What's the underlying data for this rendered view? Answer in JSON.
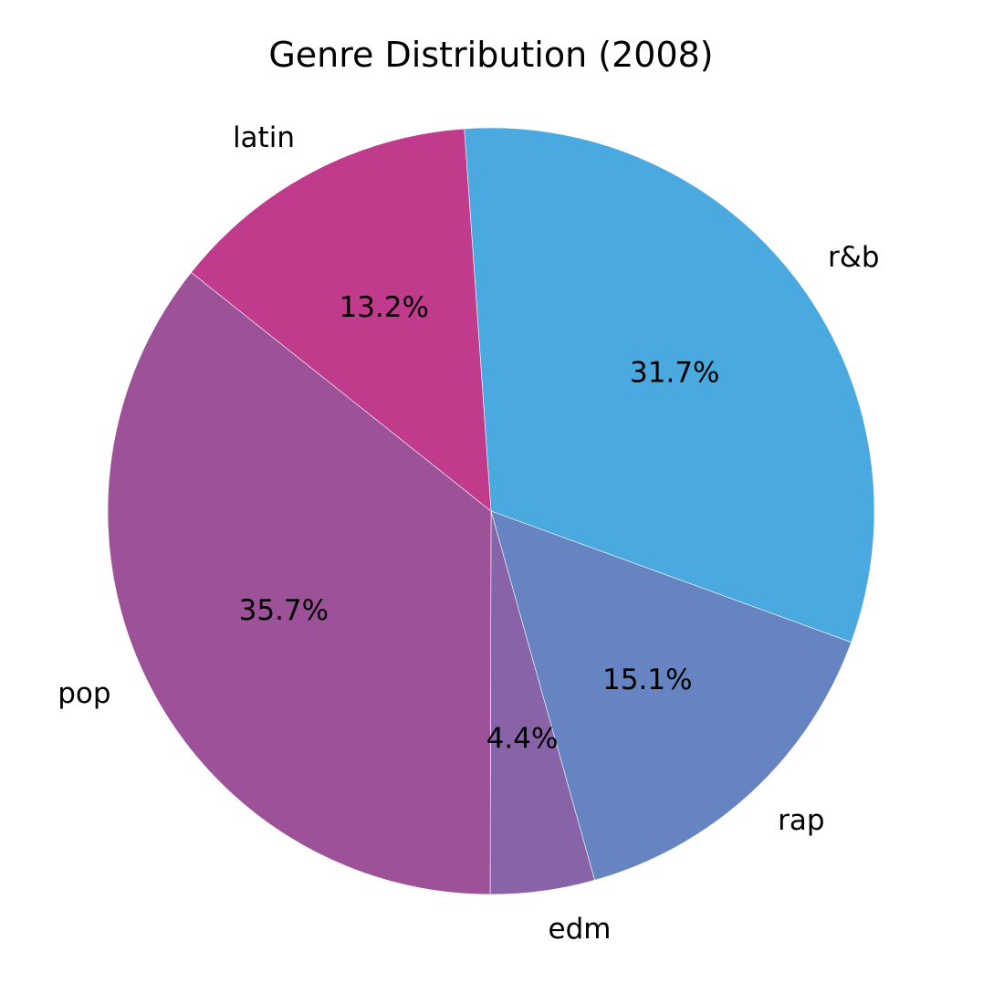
{
  "chart_data": {
    "type": "pie",
    "title": "Genre Distribution (2008)",
    "slices": [
      {
        "label": "r&b",
        "value": 31.7,
        "pct_label": "31.7%",
        "color": "#4aa9df"
      },
      {
        "label": "rap",
        "value": 15.1,
        "pct_label": "15.1%",
        "color": "#6784c2"
      },
      {
        "label": "edm",
        "value": 4.4,
        "pct_label": "4.4%",
        "color": "#8863a7"
      },
      {
        "label": "pop",
        "value": 35.7,
        "pct_label": "35.7%",
        "color": "#9c5199"
      },
      {
        "label": "latin",
        "value": 13.2,
        "pct_label": "13.2%",
        "color": "#c03b8c"
      }
    ]
  }
}
